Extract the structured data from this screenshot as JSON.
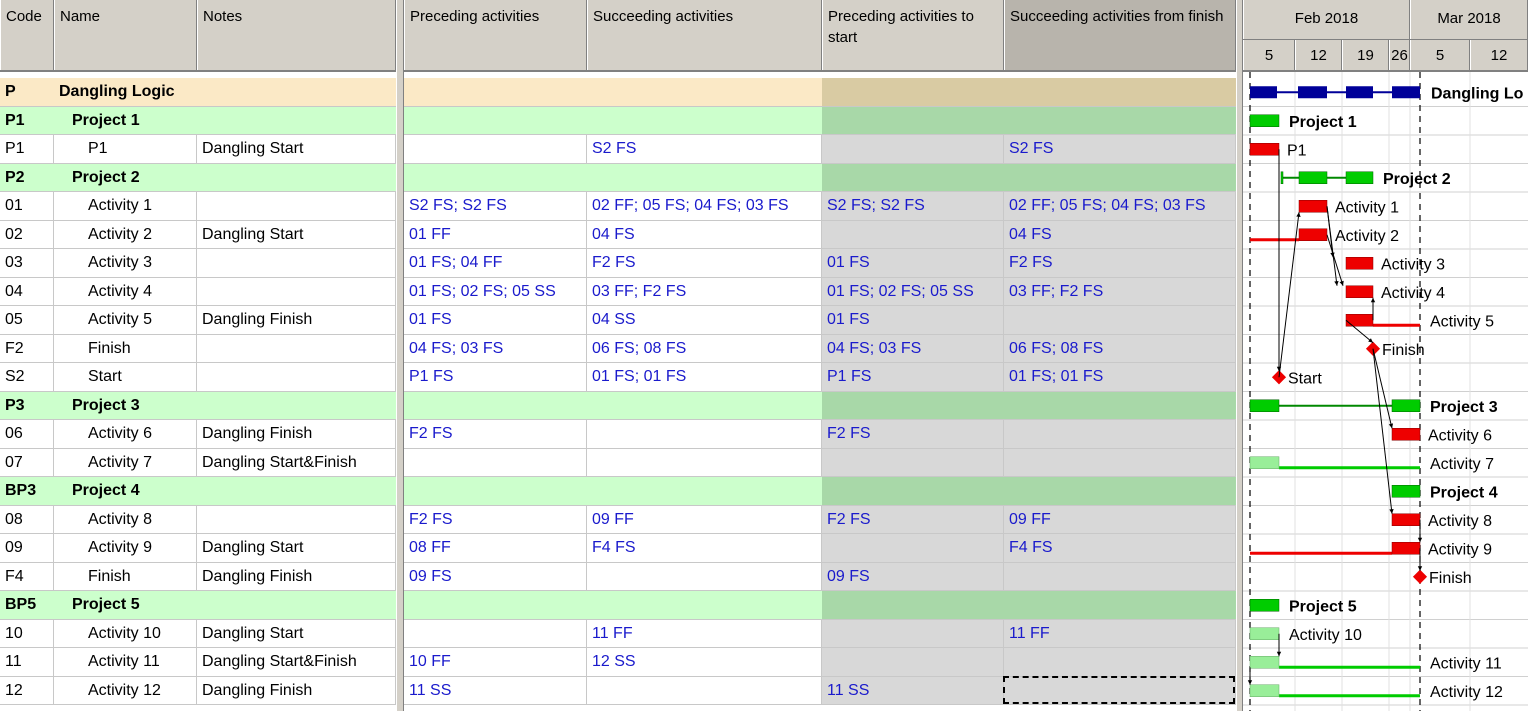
{
  "columns": {
    "left": [
      "Code",
      "Name",
      "Notes"
    ],
    "mid": [
      "Preceding activities",
      "Succeeding activities",
      "Preceding activities to start",
      "Succeeding activities from finish"
    ]
  },
  "timescale": {
    "months": [
      "Feb 2018",
      "Mar 2018"
    ],
    "days": [
      "5",
      "12",
      "19",
      "26",
      "5",
      "12"
    ]
  },
  "rows": [
    {
      "code": "P",
      "name": "Dangling Logic",
      "notes": "",
      "pre": "",
      "suc": "",
      "pre_start": "",
      "suc_finish": "",
      "type": "top",
      "bar_label": "Dangling Lo"
    },
    {
      "code": "P1",
      "name": "Project 1",
      "notes": "",
      "pre": "",
      "suc": "",
      "pre_start": "",
      "suc_finish": "",
      "type": "proj",
      "bar_label": "Project 1"
    },
    {
      "code": "P1",
      "name": "P1",
      "notes": "Dangling Start",
      "pre": "",
      "suc": "S2 FS",
      "pre_start": "",
      "suc_finish": "S2 FS",
      "type": "act",
      "bar_label": "P1"
    },
    {
      "code": "P2",
      "name": "Project 2",
      "notes": "",
      "pre": "",
      "suc": "",
      "pre_start": "",
      "suc_finish": "",
      "type": "proj",
      "bar_label": "Project 2"
    },
    {
      "code": "01",
      "name": "Activity 1",
      "notes": "",
      "pre": "S2 FS; S2 FS",
      "suc": "02 FF; 05 FS; 04 FS; 03 FS",
      "pre_start": "S2 FS; S2 FS",
      "suc_finish": "02 FF; 05 FS; 04 FS; 03 FS",
      "type": "act",
      "bar_label": "Activity 1"
    },
    {
      "code": "02",
      "name": "Activity 2",
      "notes": "Dangling Start",
      "pre": "01 FF",
      "suc": "04 FS",
      "pre_start": "",
      "suc_finish": "04 FS",
      "type": "act",
      "bar_label": "Activity 2"
    },
    {
      "code": "03",
      "name": "Activity 3",
      "notes": "",
      "pre": "01 FS; 04 FF",
      "suc": "F2 FS",
      "pre_start": "01 FS",
      "suc_finish": "F2 FS",
      "type": "act",
      "bar_label": "Activity 3"
    },
    {
      "code": "04",
      "name": "Activity 4",
      "notes": "",
      "pre": "01 FS; 02 FS; 05 SS",
      "suc": "03 FF; F2 FS",
      "pre_start": "01 FS; 02 FS; 05 SS",
      "suc_finish": "03 FF; F2 FS",
      "type": "act",
      "bar_label": "Activity 4"
    },
    {
      "code": "05",
      "name": "Activity 5",
      "notes": "Dangling Finish",
      "pre": "01 FS",
      "suc": "04 SS",
      "pre_start": "01 FS",
      "suc_finish": "",
      "type": "act",
      "bar_label": "Activity 5"
    },
    {
      "code": "F2",
      "name": "Finish",
      "notes": "",
      "pre": "04 FS; 03 FS",
      "suc": "06 FS; 08 FS",
      "pre_start": "04 FS; 03 FS",
      "suc_finish": "06 FS; 08 FS",
      "type": "act",
      "bar_label": "Finish"
    },
    {
      "code": "S2",
      "name": "Start",
      "notes": "",
      "pre": "P1 FS",
      "suc": "01 FS; 01 FS",
      "pre_start": "P1 FS",
      "suc_finish": "01 FS; 01 FS",
      "type": "act",
      "bar_label": "Start"
    },
    {
      "code": "P3",
      "name": "Project 3",
      "notes": "",
      "pre": "",
      "suc": "",
      "pre_start": "",
      "suc_finish": "",
      "type": "proj",
      "bar_label": "Project 3"
    },
    {
      "code": "06",
      "name": "Activity 6",
      "notes": "Dangling Finish",
      "pre": "F2 FS",
      "suc": "",
      "pre_start": "F2 FS",
      "suc_finish": "",
      "type": "act",
      "bar_label": "Activity 6"
    },
    {
      "code": "07",
      "name": "Activity 7",
      "notes": "Dangling Start&Finish",
      "pre": "",
      "suc": "",
      "pre_start": "",
      "suc_finish": "",
      "type": "act",
      "bar_label": "Activity 7"
    },
    {
      "code": "BP3",
      "name": "Project 4",
      "notes": "",
      "pre": "",
      "suc": "",
      "pre_start": "",
      "suc_finish": "",
      "type": "proj",
      "bar_label": "Project 4"
    },
    {
      "code": "08",
      "name": "Activity 8",
      "notes": "",
      "pre": "F2 FS",
      "suc": "09 FF",
      "pre_start": "F2 FS",
      "suc_finish": "09 FF",
      "type": "act",
      "bar_label": "Activity 8"
    },
    {
      "code": "09",
      "name": "Activity 9",
      "notes": "Dangling Start",
      "pre": "08 FF",
      "suc": "F4 FS",
      "pre_start": "",
      "suc_finish": "F4 FS",
      "type": "act",
      "bar_label": "Activity 9"
    },
    {
      "code": "F4",
      "name": "Finish",
      "notes": "Dangling Finish",
      "pre": "09 FS",
      "suc": "",
      "pre_start": "09 FS",
      "suc_finish": "",
      "type": "act",
      "bar_label": "Finish"
    },
    {
      "code": "BP5",
      "name": "Project 5",
      "notes": "",
      "pre": "",
      "suc": "",
      "pre_start": "",
      "suc_finish": "",
      "type": "proj",
      "bar_label": "Project 5"
    },
    {
      "code": "10",
      "name": "Activity 10",
      "notes": "Dangling Start",
      "pre": "",
      "suc": "11 FF",
      "pre_start": "",
      "suc_finish": "11 FF",
      "type": "act",
      "bar_label": "Activity 10"
    },
    {
      "code": "11",
      "name": "Activity 11",
      "notes": "Dangling Start&Finish",
      "pre": "10 FF",
      "suc": "12 SS",
      "pre_start": "",
      "suc_finish": "",
      "type": "act",
      "bar_label": "Activity 11"
    },
    {
      "code": "12",
      "name": "Activity 12",
      "notes": "Dangling Finish",
      "pre": "11 SS",
      "suc": "",
      "pre_start": "11 SS",
      "suc_finish": "",
      "type": "act",
      "bar_label": "Activity 12"
    }
  ],
  "colors": {
    "project_bar": "#00cc00",
    "activity_bar": "#ee0000",
    "summary_bar": "#000099",
    "milestone": "#ee0000",
    "light_bar": "#99ee99",
    "link_text": "#1a1acc"
  }
}
